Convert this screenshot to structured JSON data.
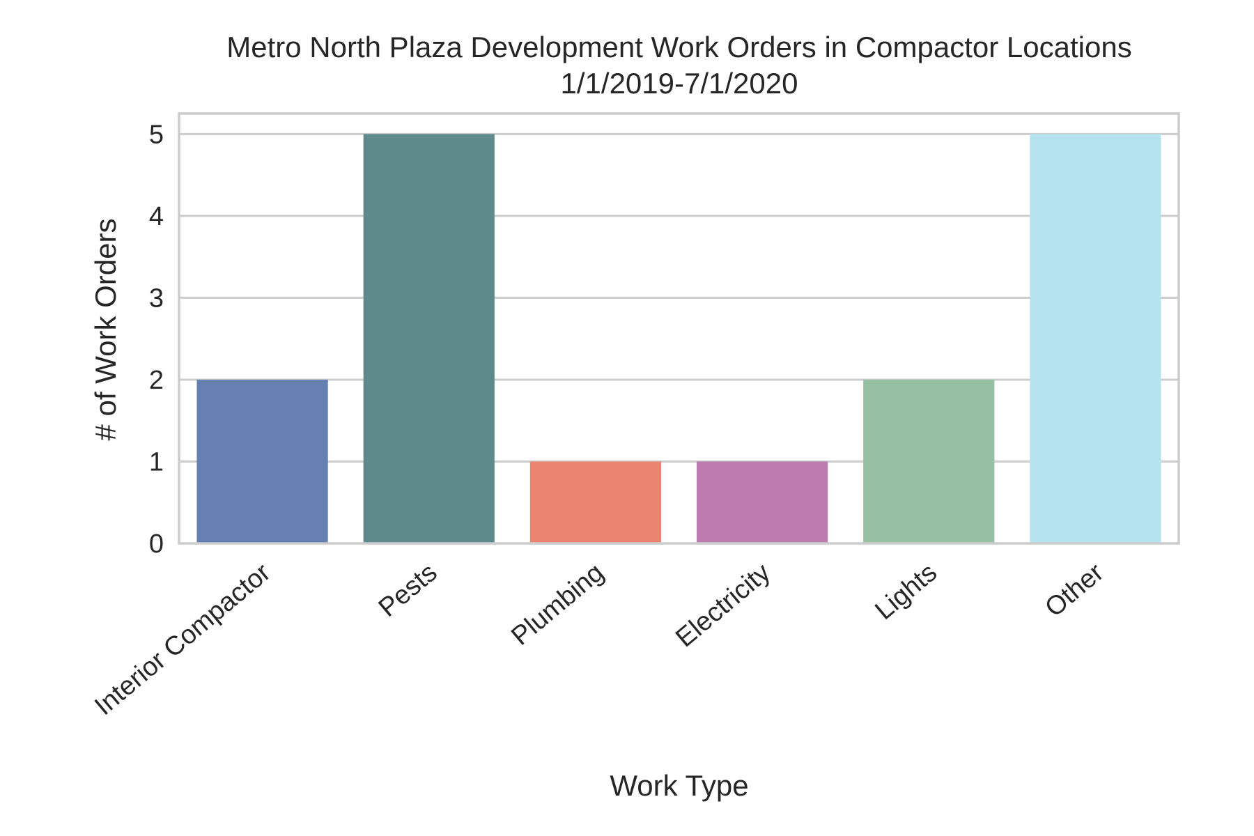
{
  "chart_data": {
    "type": "bar",
    "title_lines": [
      "Metro North Plaza Development Work Orders in Compactor Locations",
      "1/1/2019-7/1/2020"
    ],
    "xlabel": "Work Type",
    "ylabel": "# of Work Orders",
    "categories": [
      "Interior Compactor",
      "Pests",
      "Plumbing",
      "Electricity",
      "Lights",
      "Other"
    ],
    "values": [
      2,
      5,
      1,
      1,
      2,
      5
    ],
    "ylim": [
      0,
      5.25
    ],
    "yticks": [
      0,
      1,
      2,
      3,
      4,
      5
    ],
    "grid": true,
    "colors": [
      "#6680b3",
      "#5e8a89",
      "#eb8571",
      "#bd7bb0",
      "#97c0a3",
      "#b5e4f0"
    ],
    "grid_color": "#cccccc",
    "frame_color": "#cccccc"
  }
}
